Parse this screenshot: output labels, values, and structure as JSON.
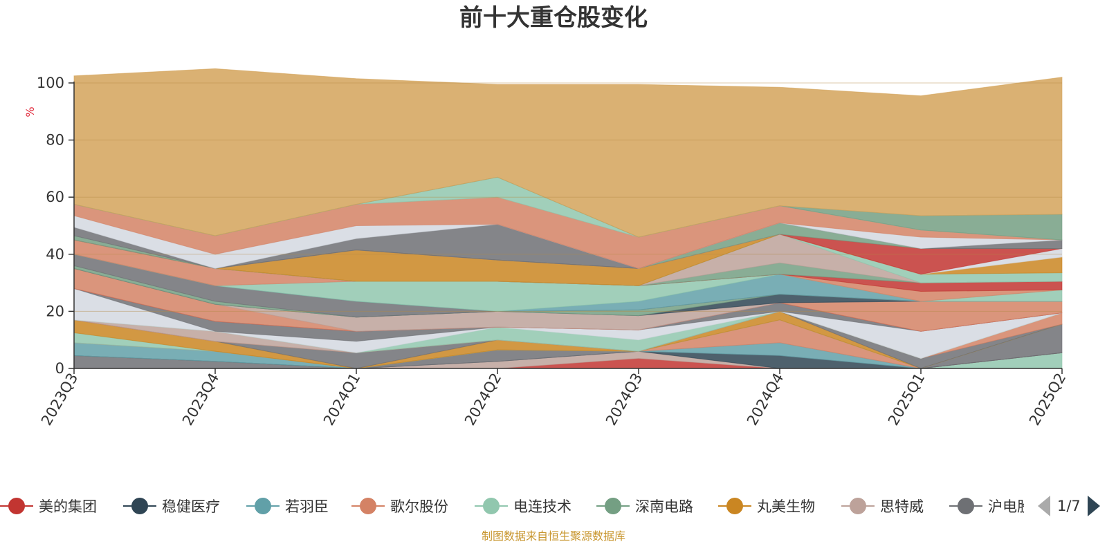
{
  "title": "前十大重仓股变化",
  "source_note": "制图数据来自恒生聚源数据库",
  "legend_pager": "1/7",
  "chart_data": {
    "type": "area",
    "stacked": true,
    "ylabel": "%",
    "ylim": [
      0,
      100
    ],
    "yticks": [
      0,
      20,
      40,
      60,
      80,
      100
    ],
    "grid": true,
    "legend_position": "bottom",
    "categories": [
      "2023Q3",
      "2023Q4",
      "2024Q1",
      "2024Q2",
      "2024Q3",
      "2024Q4",
      "2025Q1",
      "2025Q2"
    ],
    "legend": [
      {
        "name": "美的集团",
        "color": "#c23531"
      },
      {
        "name": "稳健医疗",
        "color": "#2f4554"
      },
      {
        "name": "若羽臣",
        "color": "#61a0a8"
      },
      {
        "name": "歌尔股份",
        "color": "#d48265"
      },
      {
        "name": "电连技术",
        "color": "#91c7ae"
      },
      {
        "name": "深南电路",
        "color": "#749f83"
      },
      {
        "name": "丸美生物",
        "color": "#ca8622"
      },
      {
        "name": "思特威",
        "color": "#bda29a"
      },
      {
        "name": "沪电股份",
        "color": "#6e7074"
      }
    ],
    "series": [
      {
        "color": "#6e7074",
        "values": [
          4.5,
          2.5,
          0,
          0,
          0,
          0,
          0,
          0
        ]
      },
      {
        "color": "#91c7ae",
        "values": [
          0,
          0,
          0,
          0,
          0,
          0,
          0,
          5.5
        ]
      },
      {
        "color": "#c23531",
        "values": [
          0,
          0,
          0,
          0,
          3.5,
          0,
          0,
          0
        ]
      },
      {
        "color": "#bda29a",
        "values": [
          0,
          0,
          0,
          2.5,
          2.5,
          0,
          0,
          0
        ]
      },
      {
        "color": "#2f4554",
        "values": [
          0,
          0,
          0,
          0,
          0,
          4.5,
          0,
          0
        ]
      },
      {
        "color": "#6e7074",
        "values": [
          0,
          0,
          0,
          4.0,
          0,
          0,
          0,
          10.0
        ]
      },
      {
        "color": "#61a0a8",
        "values": [
          4.5,
          3.5,
          0,
          0,
          0,
          4.5,
          0,
          0
        ]
      },
      {
        "color": "#d48265",
        "values": [
          0,
          0,
          0,
          0,
          0,
          8.0,
          0,
          0
        ]
      },
      {
        "color": "#91c7ae",
        "values": [
          3.5,
          0,
          0,
          0,
          0,
          0,
          0,
          0
        ]
      },
      {
        "color": "#ca8622",
        "values": [
          4.5,
          3.5,
          0,
          3.5,
          0,
          3.0,
          0,
          0
        ]
      },
      {
        "color": "#6e7074",
        "values": [
          0,
          0,
          5.5,
          0,
          0,
          0,
          3.5,
          0
        ]
      },
      {
        "color": "#d48265",
        "values": [
          0,
          0,
          0,
          0,
          0,
          0,
          0,
          4.0
        ]
      },
      {
        "color": "#bda29a",
        "values": [
          0,
          3.5,
          0,
          0,
          0,
          0,
          0,
          0
        ]
      },
      {
        "color": "#91c7ae",
        "values": [
          0,
          0,
          0,
          4.5,
          4.0,
          0,
          0,
          0
        ]
      },
      {
        "color": "#d3d8e0",
        "values": [
          11.0,
          0,
          4.0,
          0,
          3.5,
          0,
          9.5,
          0
        ]
      },
      {
        "color": "#6e7074",
        "values": [
          0,
          3.5,
          3.5,
          0,
          0,
          3.0,
          0,
          0
        ]
      },
      {
        "color": "#c23531",
        "values": [
          0,
          0,
          0,
          0,
          0,
          0,
          0,
          0
        ]
      },
      {
        "color": "#d48265",
        "values": [
          7.0,
          6.0,
          0,
          0,
          0,
          0,
          10.5,
          4.0
        ]
      },
      {
        "color": "#bda29a",
        "values": [
          0,
          0,
          5.0,
          5.5,
          5.0,
          0,
          0,
          0
        ]
      },
      {
        "color": "#2f4554",
        "values": [
          0,
          0,
          0,
          0,
          0,
          3.0,
          0,
          0
        ]
      },
      {
        "color": "#749f83",
        "values": [
          1.0,
          1.0,
          0,
          0,
          2.0,
          0,
          0,
          0
        ]
      },
      {
        "color": "#6e7074",
        "values": [
          4.0,
          5.5,
          5.5,
          0,
          0,
          0,
          0,
          0
        ]
      },
      {
        "color": "#61a0a8",
        "values": [
          0,
          0,
          0,
          0,
          3.0,
          7.0,
          0,
          0
        ]
      },
      {
        "color": "#91c7ae",
        "values": [
          0,
          0,
          7.0,
          10.5,
          5.5,
          0,
          0,
          4.0
        ]
      },
      {
        "color": "#d48265",
        "values": [
          5.0,
          6.0,
          0,
          0,
          0,
          0,
          3.5,
          0
        ]
      },
      {
        "color": "#c23531",
        "values": [
          0,
          0,
          0,
          0,
          0,
          0,
          3.0,
          3.0
        ]
      },
      {
        "color": "#749f83",
        "values": [
          0,
          0,
          0,
          0,
          0,
          4.0,
          0,
          0
        ]
      },
      {
        "color": "#bda29a",
        "values": [
          0,
          0,
          0,
          0,
          0,
          10.0,
          0,
          0
        ]
      },
      {
        "color": "#91c7ae",
        "values": [
          0,
          0,
          0,
          0,
          0,
          0,
          3.0,
          3.0
        ]
      },
      {
        "color": "#ca8622",
        "values": [
          0,
          0,
          11.0,
          7.5,
          6.0,
          0,
          0,
          5.5
        ]
      },
      {
        "color": "#d3d8e0",
        "values": [
          0,
          0,
          0,
          0,
          0,
          0,
          0,
          3.0
        ]
      },
      {
        "color": "#c23531",
        "values": [
          0,
          0,
          0,
          0,
          0,
          0,
          9.0,
          0
        ]
      },
      {
        "color": "#749f83",
        "values": [
          1.5,
          0,
          0,
          0,
          0,
          4.0,
          0,
          0
        ]
      },
      {
        "color": "#6e7074",
        "values": [
          3.0,
          0,
          4.0,
          12.5,
          0,
          0,
          0,
          3.0
        ]
      },
      {
        "color": "#d3d8e0",
        "values": [
          4.0,
          5.0,
          4.5,
          0,
          0,
          0,
          4.0,
          0
        ]
      },
      {
        "color": "#d48265",
        "values": [
          4.0,
          6.5,
          7.5,
          9.5,
          11.0,
          6.0,
          2.5,
          0
        ]
      },
      {
        "color": "#91c7ae",
        "values": [
          0,
          0,
          0,
          7.0,
          0,
          0,
          0,
          0
        ]
      },
      {
        "color": "#749f83",
        "values": [
          0,
          0,
          0,
          0,
          0,
          0,
          5.0,
          9.0
        ]
      },
      {
        "color": "#d4a35a",
        "values": [
          45.0,
          58.5,
          44.0,
          32.5,
          53.5,
          41.5,
          42.0,
          48.0
        ]
      }
    ]
  }
}
